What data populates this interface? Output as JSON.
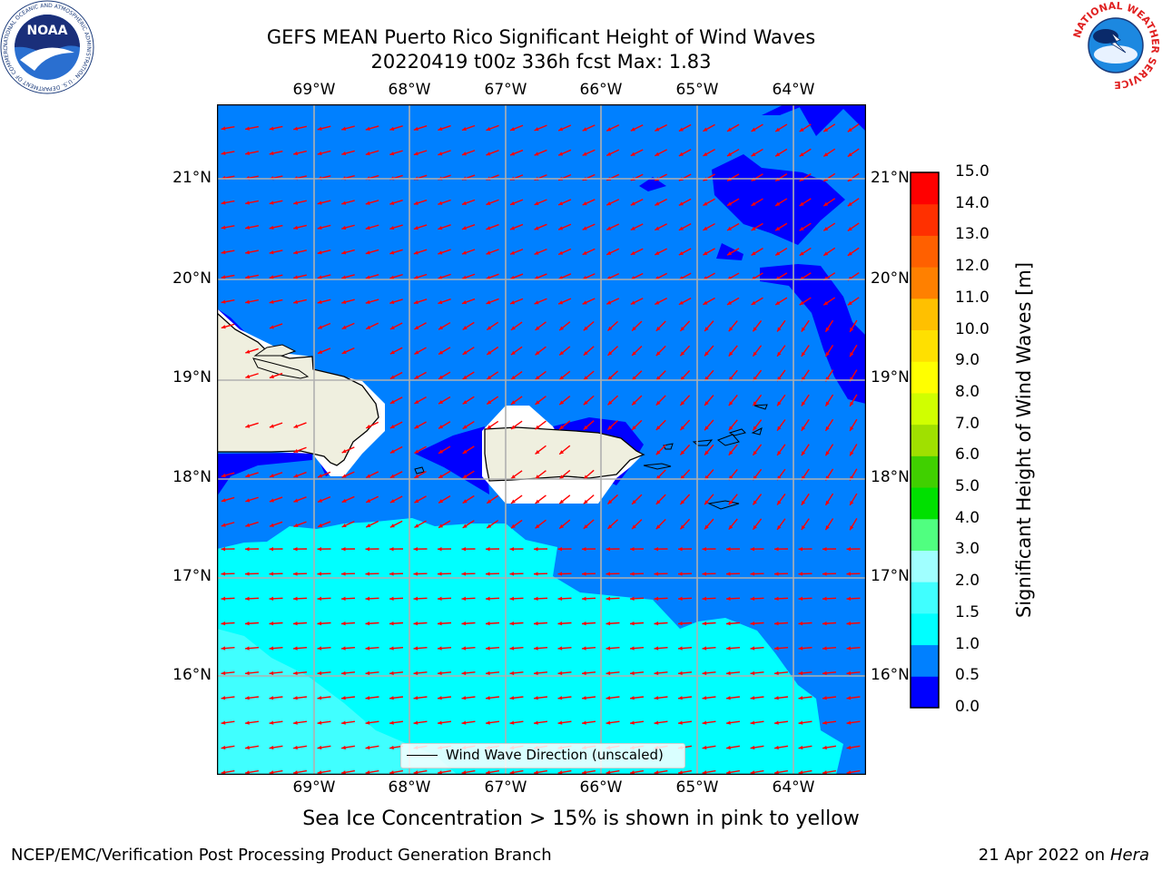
{
  "header": {
    "title_line1": "GEFS MEAN Puerto Rico Significant Height of Wind Waves",
    "title_line2": "20220419 t00z 336h fcst   Max: 1.83"
  },
  "logos": {
    "noaa_text": "NOAA",
    "noaa_ring_text": "NATIONAL OCEANIC AND ATMOSPHERIC ADMINISTRATION · U.S. DEPARTMENT OF COMMERCE",
    "nws_ring_text": "NATIONAL WEATHER SERVICE"
  },
  "map": {
    "lon_ticks": [
      "69°W",
      "68°W",
      "67°W",
      "66°W",
      "65°W",
      "64°W"
    ],
    "lat_ticks": [
      "21°N",
      "20°N",
      "19°N",
      "18°N",
      "17°N",
      "16°N"
    ],
    "legend_label": "Wind Wave Direction (unscaled)",
    "arrow_color": "#ff0000",
    "land_color": "#efefdf"
  },
  "colorbar": {
    "label": "Significant Height of Wind Waves [m]",
    "ticks": [
      "0.0",
      "0.5",
      "1.0",
      "1.5",
      "2.0",
      "3.0",
      "4.0",
      "5.0",
      "6.0",
      "7.0",
      "8.0",
      "9.0",
      "10.0",
      "11.0",
      "12.0",
      "13.0",
      "14.0",
      "15.0"
    ],
    "colors": [
      "#0000ff",
      "#0080ff",
      "#00ffff",
      "#40ffff",
      "#a0ffff",
      "#50ff80",
      "#00e000",
      "#40d000",
      "#a0e000",
      "#d0ff00",
      "#ffff00",
      "#ffe000",
      "#ffc000",
      "#ff8000",
      "#ff6000",
      "#ff3000",
      "#ff0000"
    ]
  },
  "notes": {
    "sea_ice": "Sea Ice Concentration > 15% is shown in pink to yellow",
    "credit": "NCEP/EMC/Verification Post Processing Product Generation Branch",
    "date": "21 Apr 2022 on ",
    "machine": "Hera"
  }
}
